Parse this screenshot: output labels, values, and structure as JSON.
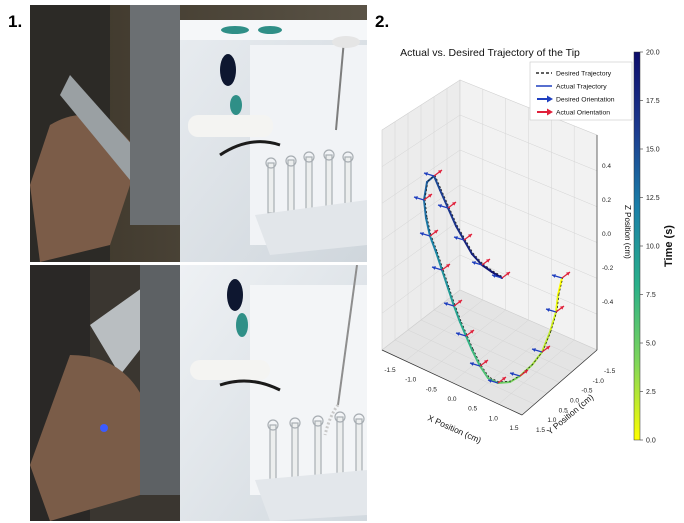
{
  "figure": {
    "panel_1_label": "1.",
    "panel_2_label": "2."
  },
  "photos": [
    {
      "name": "photo-top",
      "description_icon": "handheld-probe-photo"
    },
    {
      "name": "photo-bottom",
      "description_icon": "handheld-probe-photo"
    }
  ],
  "chart_data": {
    "type": "line",
    "title": "Actual vs. Desired Trajectory of the Tip",
    "xlabel": "X Position (cm)",
    "ylabel": "Y Position (cm)",
    "zlabel": "Z Position (cm)",
    "x_ticks": [
      "-1.5",
      "-1.0",
      "-0.5",
      "0.0",
      "0.5",
      "1.0",
      "1.5"
    ],
    "y_ticks": [
      "-1.5",
      "-1.0",
      "-0.5",
      "0.0",
      "0.5",
      "1.0",
      "1.5"
    ],
    "z_ticks": [
      "0.4",
      "0.2",
      "0.0",
      "-0.2",
      "-0.4"
    ],
    "legend": [
      {
        "label": "Desired Trajectory",
        "style": "dashed",
        "color": "#000000"
      },
      {
        "label": "Actual Trajectory",
        "style": "line",
        "color": "#1f3fbf"
      },
      {
        "label": "Desired Orientation",
        "style": "arrow",
        "color": "#1f3fbf"
      },
      {
        "label": "Actual Orientation",
        "style": "arrow",
        "color": "#e0203a"
      }
    ],
    "legend_position": "top-right",
    "colorbar": {
      "label": "Time (s)",
      "min": 0.0,
      "max": 20.0,
      "ticks": [
        "20.0",
        "17.5",
        "15.0",
        "12.5",
        "10.0",
        "7.5",
        "5.0",
        "2.5",
        "0.0"
      ],
      "colors": [
        "#ffff00",
        "#7fd65a",
        "#2ab08a",
        "#1a7fa8",
        "#1c3a8f",
        "#0d0d6b"
      ]
    }
  }
}
